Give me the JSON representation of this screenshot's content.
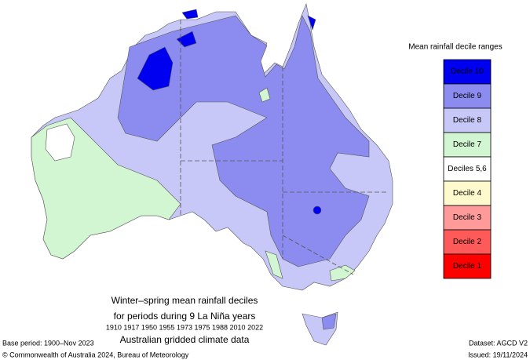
{
  "legend": {
    "title": "Mean rainfall decile ranges",
    "items": [
      {
        "label": "Decile 10",
        "color": "#0000f0"
      },
      {
        "label": "Decile 9",
        "color": "#8c8cf0"
      },
      {
        "label": "Decile 8",
        "color": "#c8c8f8"
      },
      {
        "label": "Decile 7",
        "color": "#d2f5d2"
      },
      {
        "label": "Deciles 5,6",
        "color": "#ffffff"
      },
      {
        "label": "Decile 4",
        "color": "#fffacd"
      },
      {
        "label": "Decile 3",
        "color": "#ff9a9a"
      },
      {
        "label": "Decile 2",
        "color": "#ff5a5a"
      },
      {
        "label": "Decile 1",
        "color": "#ff0000"
      }
    ]
  },
  "caption": {
    "title": "Winter–spring mean rainfall deciles",
    "subtitle": "for periods during 9 La Niña years",
    "years": "1910 1917 1950 1955 1973 1975 1988 2010 2022",
    "note": "Australian gridded climate data"
  },
  "footer": {
    "base_period": "Base period: 1900–Nov 2023",
    "copyright": "© Commonwealth of Australia 2024, Bureau of Meteorology",
    "dataset": "Dataset: AGCD V2",
    "issued": "Issued: 19/11/2024"
  }
}
